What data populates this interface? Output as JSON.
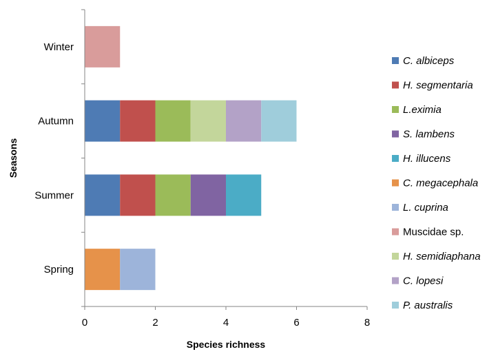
{
  "chart_data": {
    "type": "bar",
    "orientation": "horizontal",
    "stacked": true,
    "categories": [
      "Spring",
      "Summer",
      "Autumn",
      "Winter"
    ],
    "xlabel": "Species richness",
    "ylabel": "Seasons",
    "xlim": [
      0,
      8
    ],
    "xticks": [
      "0",
      "2",
      "4",
      "6",
      "8"
    ],
    "grid": false,
    "legend_position": "right",
    "series": [
      {
        "name": "C. albiceps",
        "italic": true,
        "color": "#4E7BB4",
        "values": [
          0,
          1,
          1,
          0
        ]
      },
      {
        "name": "H. segmentaria",
        "italic": true,
        "color": "#C0504D",
        "values": [
          0,
          1,
          1,
          0
        ]
      },
      {
        "name": "L.eximia",
        "italic": true,
        "color": "#9BBB59",
        "values": [
          0,
          1,
          1,
          0
        ]
      },
      {
        "name": "S. lambens",
        "italic": true,
        "color": "#8064A2",
        "values": [
          0,
          1,
          0,
          0
        ]
      },
      {
        "name": "H. illucens",
        "italic": true,
        "color": "#4BACC6",
        "values": [
          0,
          1,
          0,
          0
        ]
      },
      {
        "name": "C. megacephala",
        "italic": true,
        "color": "#E6924A",
        "values": [
          1,
          0,
          0,
          0
        ]
      },
      {
        "name": "L. cuprina",
        "italic": true,
        "color": "#9DB4DA",
        "values": [
          1,
          0,
          0,
          0
        ]
      },
      {
        "name": "Muscidae sp.",
        "italic": false,
        "color": "#D99C9B",
        "values": [
          0,
          0,
          0,
          1
        ]
      },
      {
        "name": "H. semidiaphana",
        "italic": true,
        "color": "#C3D69B",
        "values": [
          0,
          0,
          1,
          0
        ]
      },
      {
        "name": "C. lopesi",
        "italic": true,
        "color": "#B3A2C7",
        "values": [
          0,
          0,
          1,
          0
        ]
      },
      {
        "name": "P. australis",
        "italic": true,
        "color": "#9FCDDB",
        "values": [
          0,
          0,
          1,
          0
        ]
      }
    ]
  }
}
